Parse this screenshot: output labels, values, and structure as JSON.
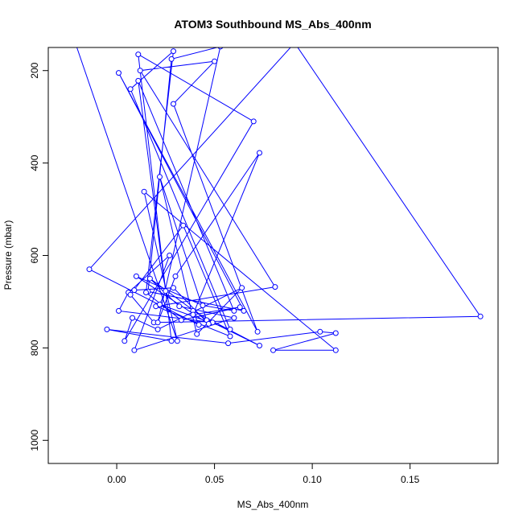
{
  "chart_data": {
    "type": "scatter",
    "title": "ATOM3 Southbound MS_Abs_400nm",
    "xlabel": "MS_Abs_400nm",
    "ylabel": "Pressure (mbar)",
    "xlim": [
      -0.035,
      0.195
    ],
    "ylim": [
      1050,
      150
    ],
    "y_inverted": true,
    "x_ticks": [
      0.0,
      0.05,
      0.1,
      0.15
    ],
    "x_tick_labels": [
      "0.00",
      "0.05",
      "0.10",
      "0.15"
    ],
    "y_ticks": [
      200,
      400,
      600,
      800,
      1000
    ],
    "y_tick_labels": [
      "200",
      "400",
      "600",
      "800",
      "1000"
    ],
    "grid": false,
    "legend": "none",
    "series": [
      {
        "color": "#0000ff",
        "marker": "open-circle",
        "line": true,
        "x": [
          -0.022,
          0.031,
          0.014,
          0.112,
          0.08,
          0.112,
          0.104,
          0.057,
          -0.005,
          0.028,
          0.011,
          0.07,
          0.004,
          0.008,
          0.021,
          0.064,
          0.041,
          0.022,
          0.046,
          0.017,
          0.032,
          0.06,
          0.009,
          0.027,
          0.006,
          0.001,
          0.049,
          0.073,
          0.039,
          0.042,
          -0.014,
          0.091,
          0.186,
          0.019,
          0.007,
          0.034,
          0.058,
          0.02,
          0.081,
          0.012,
          0.05,
          0.029,
          0.072,
          0.001,
          0.065,
          0.016,
          0.028,
          0.053,
          0.021,
          0.03,
          0.073,
          0.039,
          0.063,
          0.033,
          0.015,
          0.029,
          0.007,
          0.058,
          0.022,
          0.025,
          0.011,
          0.06,
          0.044,
          0.01,
          0.047,
          0.029,
          0.009
        ],
        "y": [
          130,
          785,
          462,
          805,
          805,
          768,
          765,
          790,
          760,
          785,
          165,
          310,
          785,
          735,
          760,
          670,
          770,
          430,
          740,
          650,
          710,
          735,
          805,
          600,
          680,
          720,
          745,
          795,
          720,
          750,
          630,
          140,
          732,
          745,
          685,
          535,
          775,
          710,
          668,
          200,
          180,
          272,
          765,
          205,
          720,
          678,
          175,
          148,
          745,
          645,
          378,
          728,
          712,
          740,
          680,
          158,
          240,
          760,
          706,
          677,
          222,
          720,
          708,
          645,
          748,
          670,
          675
        ]
      }
    ]
  }
}
